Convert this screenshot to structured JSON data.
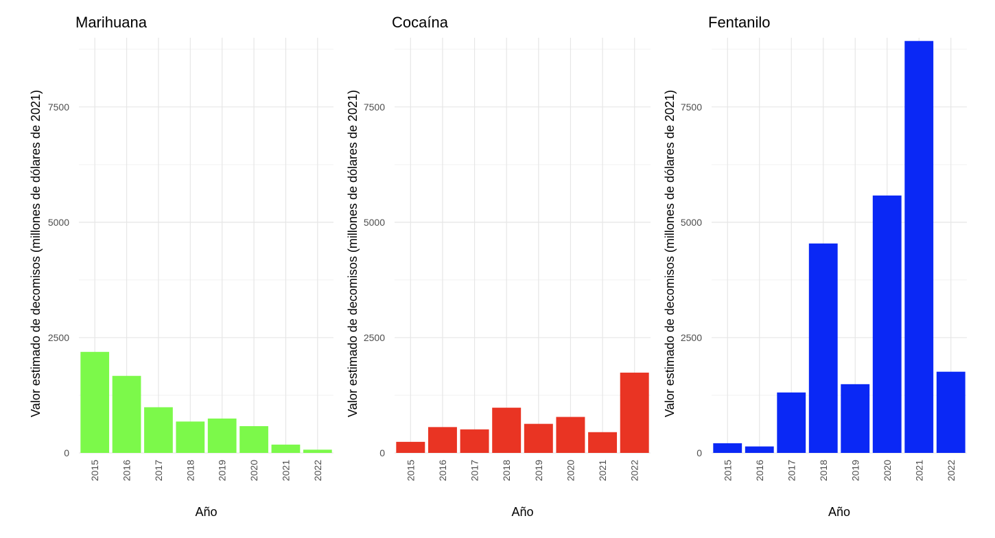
{
  "chart_data": [
    {
      "type": "bar",
      "title": "Marihuana",
      "xlabel": "Año",
      "ylabel": "Valor estimado de decomisos (millones de dólares de 2021)",
      "categories": [
        "2015",
        "2016",
        "2017",
        "2018",
        "2019",
        "2020",
        "2021",
        "2022"
      ],
      "values": [
        2190,
        1670,
        990,
        680,
        745,
        580,
        180,
        70
      ],
      "ylim": [
        0,
        9000
      ],
      "yticks": [
        0,
        2500,
        5000,
        7500
      ],
      "grid": true,
      "color": "#7CF94A"
    },
    {
      "type": "bar",
      "title": "Cocaína",
      "xlabel": "Año",
      "ylabel": "Valor estimado de decomisos (millones de dólares de 2021)",
      "categories": [
        "2015",
        "2016",
        "2017",
        "2018",
        "2019",
        "2020",
        "2021",
        "2022"
      ],
      "values": [
        240,
        560,
        510,
        980,
        630,
        780,
        450,
        1740
      ],
      "ylim": [
        0,
        9000
      ],
      "yticks": [
        0,
        2500,
        5000,
        7500
      ],
      "grid": true,
      "color": "#E93423"
    },
    {
      "type": "bar",
      "title": "Fentanilo",
      "xlabel": "Año",
      "ylabel": "Valor estimado de decomisos (millones de dólares de 2021)",
      "categories": [
        "2015",
        "2016",
        "2017",
        "2018",
        "2019",
        "2020",
        "2021",
        "2022"
      ],
      "values": [
        210,
        140,
        1310,
        4540,
        1490,
        5580,
        8930,
        1760
      ],
      "ylim": [
        0,
        9000
      ],
      "yticks": [
        0,
        2500,
        5000,
        7500
      ],
      "grid": true,
      "color": "#0A28F5"
    }
  ]
}
